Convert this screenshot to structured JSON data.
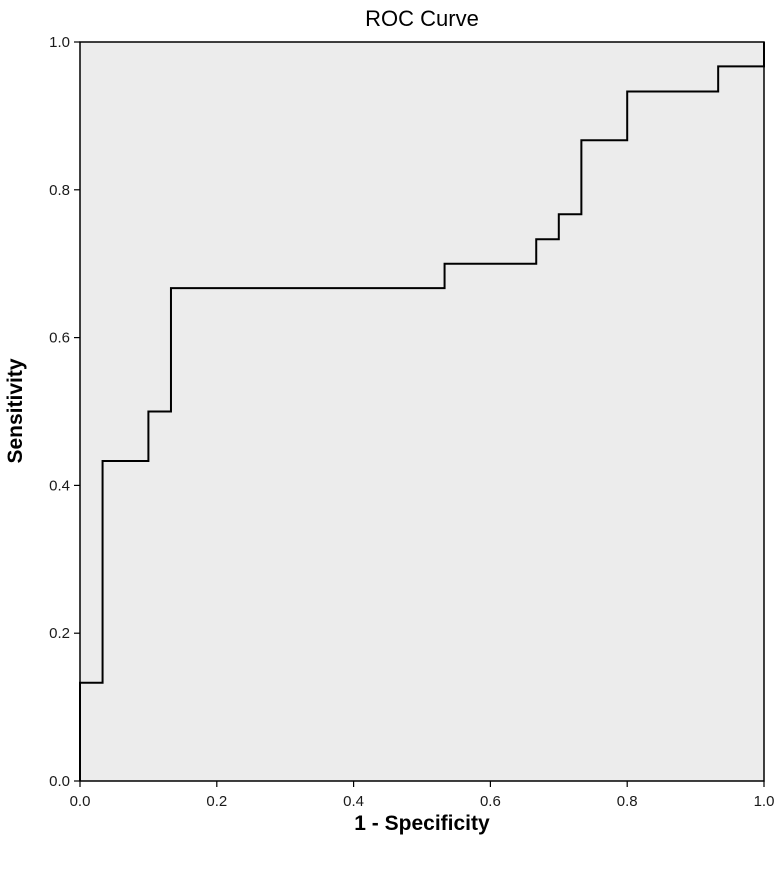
{
  "chart_data": {
    "type": "line",
    "title": "ROC Curve",
    "xlabel": "1 - Specificity",
    "ylabel": "Sensitivity",
    "xlim": [
      0.0,
      1.0
    ],
    "ylim": [
      0.0,
      1.0
    ],
    "x_ticks": [
      "0.0",
      "0.2",
      "0.4",
      "0.6",
      "0.8",
      "1.0"
    ],
    "y_ticks": [
      "0.0",
      "0.2",
      "0.4",
      "0.6",
      "0.8",
      "1.0"
    ],
    "grid": false,
    "legend": "none",
    "background_color": "#ececec",
    "line_color": "#000000",
    "series": [
      {
        "x": [
          0.0,
          0.0,
          0.033,
          0.033,
          0.1,
          0.1,
          0.133,
          0.133,
          0.533,
          0.533,
          0.667,
          0.667,
          0.7,
          0.7,
          0.733,
          0.733,
          0.8,
          0.8,
          0.933,
          0.933,
          1.0,
          1.0
        ],
        "y": [
          0.0,
          0.133,
          0.133,
          0.433,
          0.433,
          0.5,
          0.5,
          0.667,
          0.667,
          0.7,
          0.7,
          0.733,
          0.733,
          0.767,
          0.767,
          0.867,
          0.867,
          0.933,
          0.933,
          0.967,
          0.967,
          1.0
        ]
      }
    ]
  }
}
